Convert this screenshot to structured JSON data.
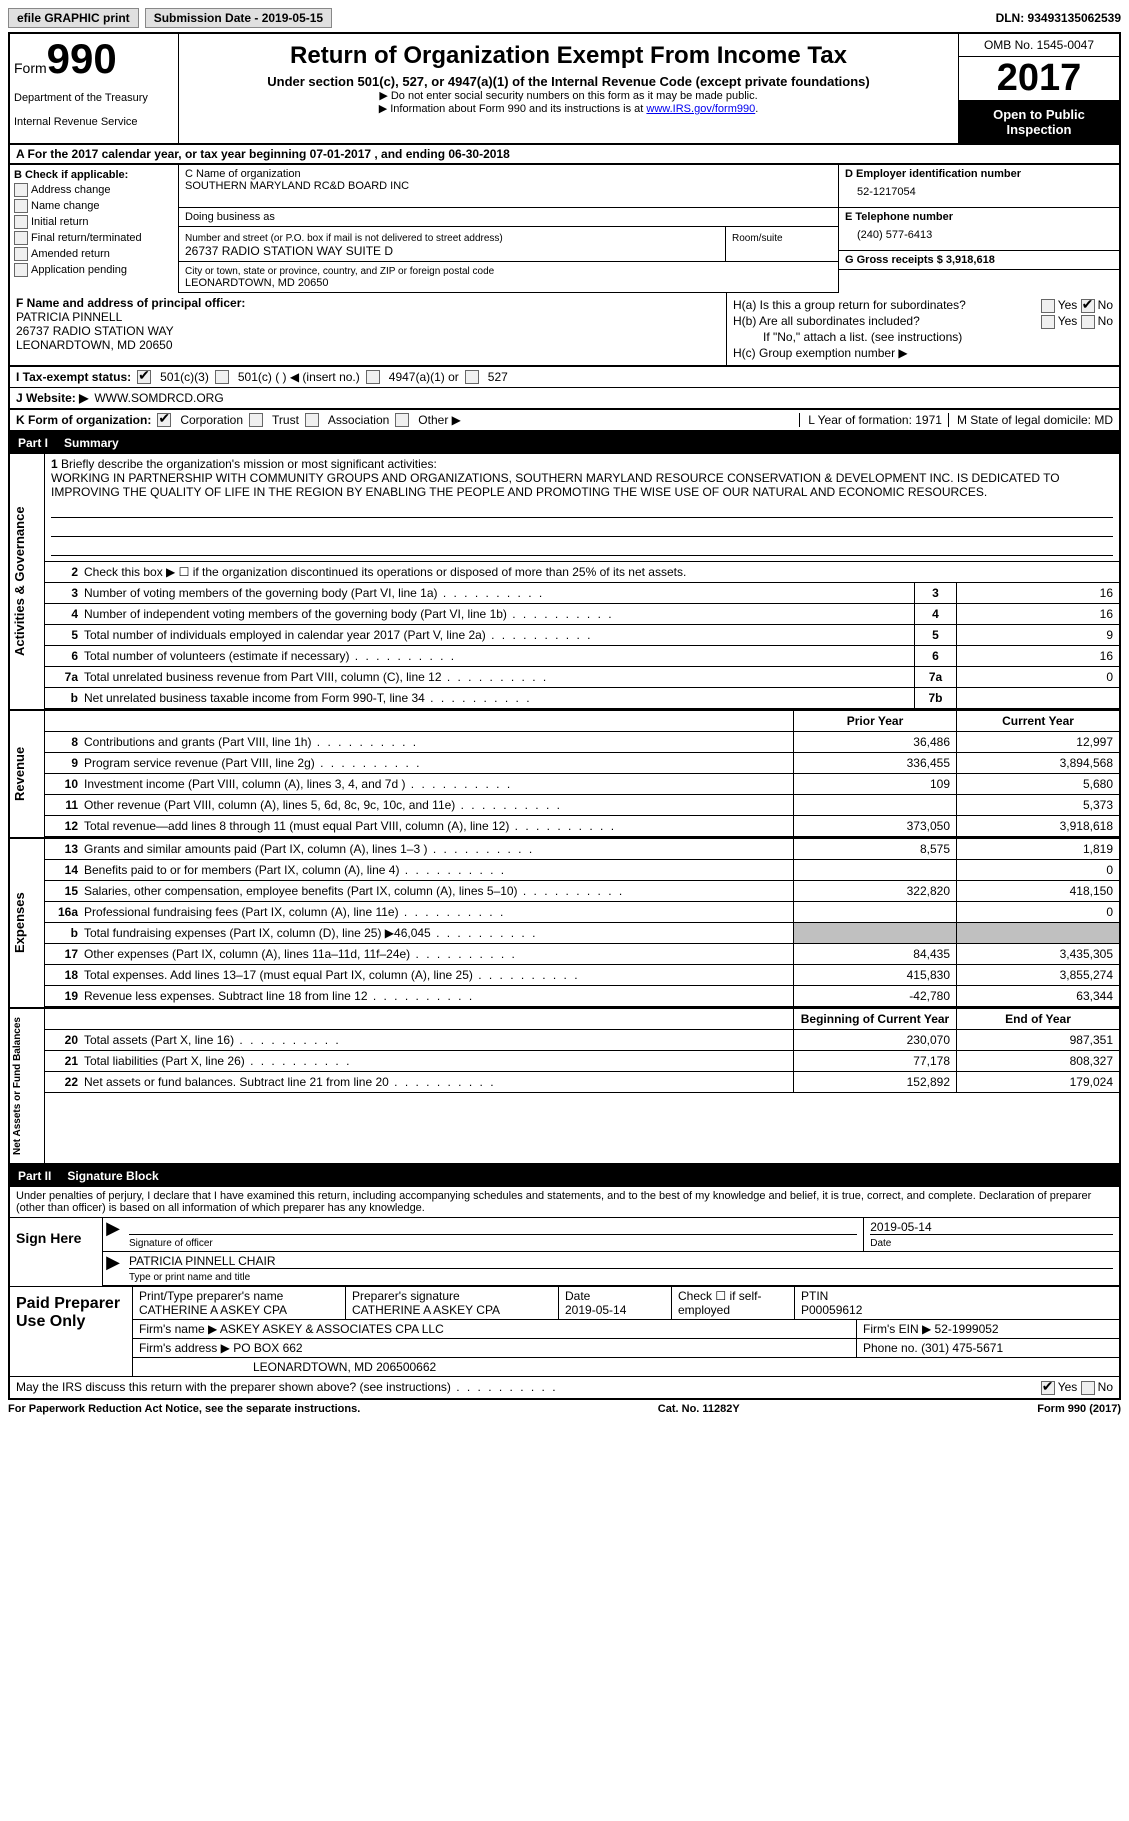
{
  "top": {
    "efile": "efile GRAPHIC print",
    "sub_date_label": "Submission Date - 2019-05-15",
    "dln": "DLN: 93493135062539"
  },
  "header": {
    "form_label": "Form",
    "form_num": "990",
    "dept1": "Department of the Treasury",
    "dept2": "Internal Revenue Service",
    "title": "Return of Organization Exempt From Income Tax",
    "subtitle": "Under section 501(c), 527, or 4947(a)(1) of the Internal Revenue Code (except private foundations)",
    "note1": "▶ Do not enter social security numbers on this form as it may be made public.",
    "note2_pre": "▶ Information about Form 990 and its instructions is at ",
    "note2_link": "www.IRS.gov/form990",
    "omb": "OMB No. 1545-0047",
    "year": "2017",
    "open": "Open to Public Inspection"
  },
  "A": {
    "text": "A  For the 2017 calendar year, or tax year beginning 07-01-2017   , and ending 06-30-2018"
  },
  "B": {
    "title": "B Check if applicable:",
    "items": [
      "Address change",
      "Name change",
      "Initial return",
      "Final return/terminated",
      "Amended return",
      "Application pending"
    ]
  },
  "C": {
    "name_label": "C Name of organization",
    "name": "SOUTHERN MARYLAND RC&D BOARD INC",
    "dba_label": "Doing business as",
    "street_label": "Number and street (or P.O. box if mail is not delivered to street address)",
    "street": "26737 RADIO STATION WAY SUITE D",
    "room_label": "Room/suite",
    "city_label": "City or town, state or province, country, and ZIP or foreign postal code",
    "city": "LEONARDTOWN, MD  20650"
  },
  "D": {
    "ein_label": "D Employer identification number",
    "ein": "52-1217054",
    "tel_label": "E Telephone number",
    "tel": "(240) 577-6413",
    "gross_label": "G Gross receipts $ 3,918,618"
  },
  "F": {
    "label": "F  Name and address of principal officer:",
    "name": "PATRICIA PINNELL",
    "addr1": "26737 RADIO STATION WAY",
    "addr2": "LEONARDTOWN, MD  20650"
  },
  "H": {
    "a": "H(a)  Is this a group return for subordinates?",
    "a_yes": "Yes",
    "a_no": "No",
    "b": "H(b)  Are all subordinates included?",
    "b_note": "If \"No,\" attach a list. (see instructions)",
    "c": "H(c)  Group exemption number ▶"
  },
  "I": {
    "label": "I  Tax-exempt status:",
    "o1": "501(c)(3)",
    "o2": "501(c) (   ) ◀ (insert no.)",
    "o3": "4947(a)(1) or",
    "o4": "527"
  },
  "J": {
    "label": "J  Website: ▶",
    "val": "WWW.SOMDRCD.ORG"
  },
  "K": {
    "label": "K Form of organization:",
    "o1": "Corporation",
    "o2": "Trust",
    "o3": "Association",
    "o4": "Other ▶"
  },
  "L": {
    "label": "L Year of formation: 1971"
  },
  "M": {
    "label": "M State of legal domicile: MD"
  },
  "part1": {
    "header": "Part I",
    "title": "Summary",
    "vtab1": "Activities & Governance",
    "vtab2": "Revenue",
    "vtab3": "Expenses",
    "vtab4": "Net Assets or Fund Balances",
    "line1_label": "Briefly describe the organization's mission or most significant activities:",
    "mission": "WORKING IN PARTNERSHIP WITH COMMUNITY GROUPS AND ORGANIZATIONS, SOUTHERN MARYLAND RESOURCE CONSERVATION & DEVELOPMENT INC. IS DEDICATED TO IMPROVING THE QUALITY OF LIFE IN THE REGION BY ENABLING THE PEOPLE AND PROMOTING THE WISE USE OF OUR NATURAL AND ECONOMIC RESOURCES.",
    "line2": "Check this box ▶ ☐  if the organization discontinued its operations or disposed of more than 25% of its net assets.",
    "rows_gov": [
      {
        "n": "3",
        "d": "Number of voting members of the governing body (Part VI, line 1a)",
        "b": "3",
        "v": "16"
      },
      {
        "n": "4",
        "d": "Number of independent voting members of the governing body (Part VI, line 1b)",
        "b": "4",
        "v": "16"
      },
      {
        "n": "5",
        "d": "Total number of individuals employed in calendar year 2017 (Part V, line 2a)",
        "b": "5",
        "v": "9"
      },
      {
        "n": "6",
        "d": "Total number of volunteers (estimate if necessary)",
        "b": "6",
        "v": "16"
      },
      {
        "n": "7a",
        "d": "Total unrelated business revenue from Part VIII, column (C), line 12",
        "b": "7a",
        "v": "0"
      },
      {
        "n": "b",
        "d": "Net unrelated business taxable income from Form 990-T, line 34",
        "b": "7b",
        "v": ""
      }
    ],
    "hdr_prior": "Prior Year",
    "hdr_curr": "Current Year",
    "rows_rev": [
      {
        "n": "8",
        "d": "Contributions and grants (Part VIII, line 1h)",
        "p": "36,486",
        "c": "12,997"
      },
      {
        "n": "9",
        "d": "Program service revenue (Part VIII, line 2g)",
        "p": "336,455",
        "c": "3,894,568"
      },
      {
        "n": "10",
        "d": "Investment income (Part VIII, column (A), lines 3, 4, and 7d )",
        "p": "109",
        "c": "5,680"
      },
      {
        "n": "11",
        "d": "Other revenue (Part VIII, column (A), lines 5, 6d, 8c, 9c, 10c, and 11e)",
        "p": "",
        "c": "5,373"
      },
      {
        "n": "12",
        "d": "Total revenue—add lines 8 through 11 (must equal Part VIII, column (A), line 12)",
        "p": "373,050",
        "c": "3,918,618"
      }
    ],
    "rows_exp": [
      {
        "n": "13",
        "d": "Grants and similar amounts paid (Part IX, column (A), lines 1–3 )",
        "p": "8,575",
        "c": "1,819"
      },
      {
        "n": "14",
        "d": "Benefits paid to or for members (Part IX, column (A), line 4)",
        "p": "",
        "c": "0"
      },
      {
        "n": "15",
        "d": "Salaries, other compensation, employee benefits (Part IX, column (A), lines 5–10)",
        "p": "322,820",
        "c": "418,150"
      },
      {
        "n": "16a",
        "d": "Professional fundraising fees (Part IX, column (A), line 11e)",
        "p": "",
        "c": "0"
      },
      {
        "n": "b",
        "d": "Total fundraising expenses (Part IX, column (D), line 25) ▶46,045",
        "p": "shade",
        "c": "shade"
      },
      {
        "n": "17",
        "d": "Other expenses (Part IX, column (A), lines 11a–11d, 11f–24e)",
        "p": "84,435",
        "c": "3,435,305"
      },
      {
        "n": "18",
        "d": "Total expenses. Add lines 13–17 (must equal Part IX, column (A), line 25)",
        "p": "415,830",
        "c": "3,855,274"
      },
      {
        "n": "19",
        "d": "Revenue less expenses. Subtract line 18 from line 12",
        "p": "-42,780",
        "c": "63,344"
      }
    ],
    "hdr_beg": "Beginning of Current Year",
    "hdr_end": "End of Year",
    "rows_net": [
      {
        "n": "20",
        "d": "Total assets (Part X, line 16)",
        "p": "230,070",
        "c": "987,351"
      },
      {
        "n": "21",
        "d": "Total liabilities (Part X, line 26)",
        "p": "77,178",
        "c": "808,327"
      },
      {
        "n": "22",
        "d": "Net assets or fund balances. Subtract line 21 from line 20",
        "p": "152,892",
        "c": "179,024"
      }
    ]
  },
  "part2": {
    "header": "Part II",
    "title": "Signature Block",
    "declaration": "Under penalties of perjury, I declare that I have examined this return, including accompanying schedules and statements, and to the best of my knowledge and belief, it is true, correct, and complete. Declaration of preparer (other than officer) is based on all information of which preparer has any knowledge.",
    "sign_here": "Sign Here",
    "sig_label": "Signature of officer",
    "sig_date": "2019-05-14",
    "date_label": "Date",
    "name_title": "PATRICIA PINNELL CHAIR",
    "name_label": "Type or print name and title",
    "paid_label": "Paid Preparer Use Only",
    "prep_name_label": "Print/Type preparer's name",
    "prep_name": "CATHERINE A ASKEY CPA",
    "prep_sig_label": "Preparer's signature",
    "prep_sig": "CATHERINE A ASKEY CPA",
    "prep_date_label": "Date",
    "prep_date": "2019-05-14",
    "check_label": "Check ☐ if self-employed",
    "ptin_label": "PTIN",
    "ptin": "P00059612",
    "firm_name_label": "Firm's name    ▶",
    "firm_name": "ASKEY ASKEY & ASSOCIATES CPA LLC",
    "firm_ein_label": "Firm's EIN ▶",
    "firm_ein": "52-1999052",
    "firm_addr_label": "Firm's address ▶",
    "firm_addr1": "PO BOX 662",
    "firm_addr2": "LEONARDTOWN, MD  206500662",
    "phone_label": "Phone no.",
    "phone": "(301) 475-5671",
    "may_irs": "May the IRS discuss this return with the preparer shown above? (see instructions)",
    "yes": "Yes",
    "no": "No"
  },
  "footer": {
    "left": "For Paperwork Reduction Act Notice, see the separate instructions.",
    "center": "Cat. No. 11282Y",
    "right": "Form 990 (2017)"
  }
}
